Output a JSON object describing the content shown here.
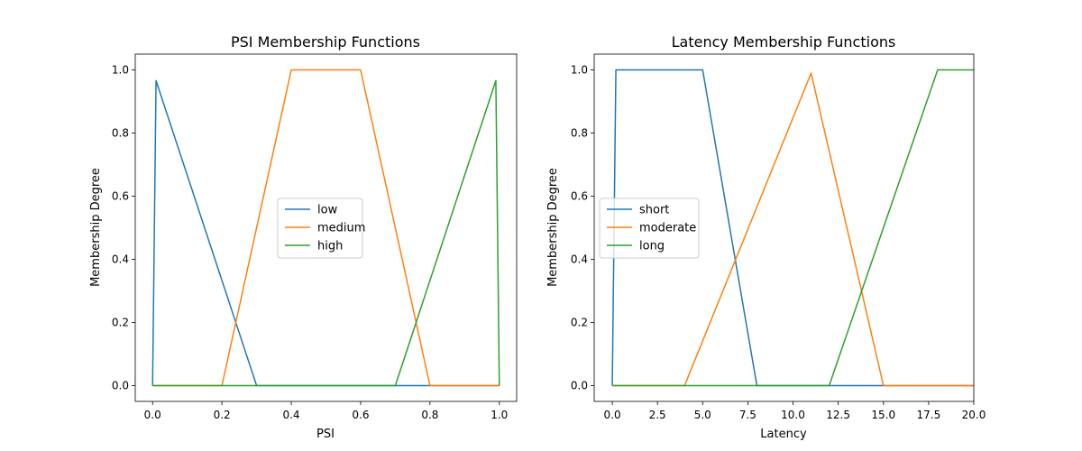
{
  "colors": {
    "series1": "#1f77b4",
    "series2": "#ff7f0e",
    "series3": "#2ca02c"
  },
  "chart_data": [
    {
      "type": "line",
      "title": "PSI Membership Functions",
      "xlabel": "PSI",
      "ylabel": "Membership Degree",
      "xlim": [
        -0.05,
        1.05
      ],
      "ylim": [
        -0.05,
        1.05
      ],
      "xticks": [
        "0.0",
        "0.2",
        "0.4",
        "0.6",
        "0.8",
        "1.0"
      ],
      "xtick_values": [
        0,
        0.2,
        0.4,
        0.6,
        0.8,
        1.0
      ],
      "yticks": [
        "0.0",
        "0.2",
        "0.4",
        "0.6",
        "0.8",
        "1.0"
      ],
      "ytick_values": [
        0,
        0.2,
        0.4,
        0.6,
        0.8,
        1.0
      ],
      "legend_position": "center",
      "series": [
        {
          "name": "low",
          "x": [
            0.0,
            0.01,
            0.3,
            0.31,
            1.0
          ],
          "y": [
            0.0,
            0.966,
            0.0,
            0.0,
            0.0
          ]
        },
        {
          "name": "medium",
          "x": [
            0.0,
            0.2,
            0.4,
            0.6,
            0.8,
            1.0
          ],
          "y": [
            0.0,
            0.0,
            1.0,
            1.0,
            0.0,
            0.0
          ]
        },
        {
          "name": "high",
          "x": [
            0.0,
            0.7,
            0.99,
            1.0
          ],
          "y": [
            0.0,
            0.0,
            0.966,
            0.0
          ]
        }
      ]
    },
    {
      "type": "line",
      "title": "Latency Membership Functions",
      "xlabel": "Latency",
      "ylabel": "Membership Degree",
      "xlim": [
        -1.0,
        20.0
      ],
      "ylim": [
        -0.05,
        1.05
      ],
      "xticks": [
        "0.0",
        "2.5",
        "5.0",
        "7.5",
        "10.0",
        "12.5",
        "15.0",
        "17.5",
        "20.0"
      ],
      "xtick_values": [
        0,
        2.5,
        5.0,
        7.5,
        10.0,
        12.5,
        15.0,
        17.5,
        20.0
      ],
      "yticks": [
        "0.0",
        "0.2",
        "0.4",
        "0.6",
        "0.8",
        "1.0"
      ],
      "ytick_values": [
        0,
        0.2,
        0.4,
        0.6,
        0.8,
        1.0
      ],
      "legend_position": "center left",
      "series": [
        {
          "name": "short",
          "x": [
            0.0,
            0.2,
            5.0,
            8.0,
            20.0
          ],
          "y": [
            0.0,
            1.0,
            1.0,
            0.0,
            0.0
          ]
        },
        {
          "name": "moderate",
          "x": [
            0.0,
            4.0,
            11.0,
            15.0,
            20.0
          ],
          "y": [
            0.0,
            0.0,
            0.99,
            0.0,
            0.0
          ]
        },
        {
          "name": "long",
          "x": [
            0.0,
            12.0,
            18.0,
            20.0
          ],
          "y": [
            0.0,
            0.0,
            1.0,
            1.0
          ]
        }
      ]
    }
  ]
}
